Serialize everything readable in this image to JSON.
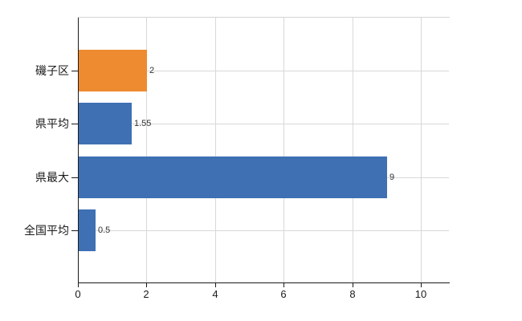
{
  "chart_data": {
    "type": "bar",
    "orientation": "horizontal",
    "title": "",
    "xlabel": "",
    "ylabel": "",
    "categories": [
      "磯子区",
      "県平均",
      "県最大",
      "全国平均"
    ],
    "values": [
      2,
      1.55,
      9,
      0.5
    ],
    "value_labels": [
      "2",
      "1.55",
      "9",
      "0.5"
    ],
    "bar_colors": [
      "#EE8B31",
      "#3E70B3",
      "#3E70B3",
      "#3E70B3"
    ],
    "x_ticks": [
      0,
      2,
      4,
      6,
      8,
      10
    ],
    "x_tick_labels": [
      "0",
      "2",
      "4",
      "6",
      "8",
      "10"
    ],
    "xlim": [
      0,
      10.8
    ],
    "grid": true,
    "legend": "none",
    "colors": {
      "grid": "#d8d8d8",
      "axis": "#1a1a1a",
      "tick_text": "#1a1a1a",
      "value_text": "#333333",
      "background": "#ffffff"
    }
  }
}
